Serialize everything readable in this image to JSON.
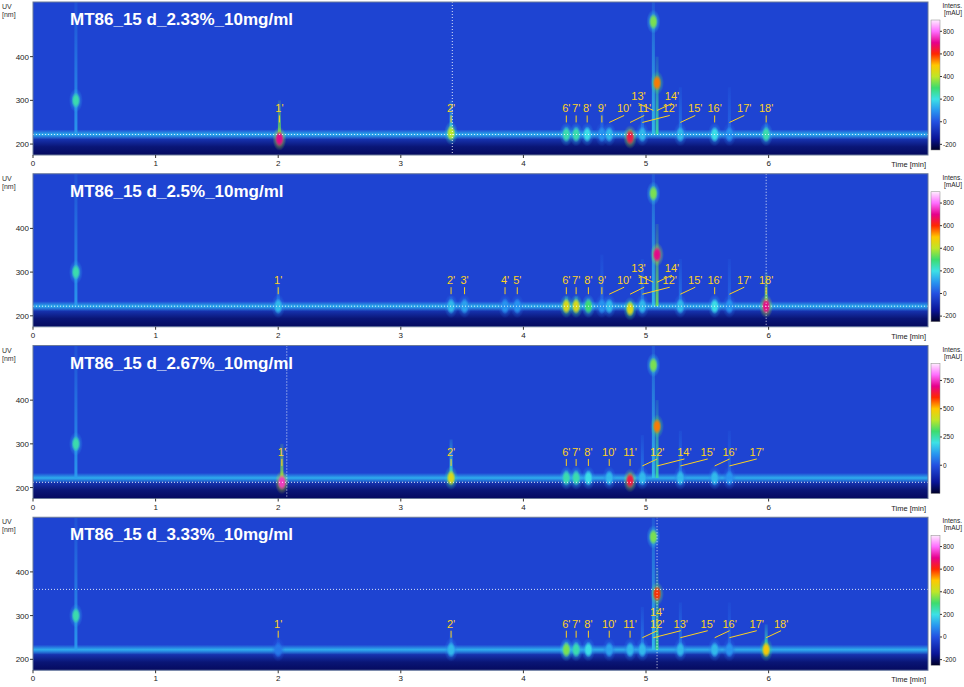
{
  "chart_data": [
    {
      "type": "heatmap",
      "title": "MT86_15 d_2.33%_10mg/ml",
      "x_label": "Time [min]",
      "y_label": "UV [nm]",
      "xlim": [
        0,
        7.3
      ],
      "xticks": [
        0,
        1,
        2,
        3,
        4,
        5,
        6
      ],
      "ylim": [
        175,
        525
      ],
      "yticks": [
        200,
        300,
        400
      ],
      "grid": false,
      "background_value": -30,
      "baseline": {
        "y": 222,
        "value": 130,
        "floor_value": -200
      },
      "cursor": {
        "x": 3.42,
        "y": 222
      },
      "colorbar": {
        "label": "Intens. [mAU]",
        "range": [
          -250,
          900
        ],
        "ticks": [
          -200,
          0,
          200,
          400,
          600,
          800
        ]
      },
      "peaks": [
        {
          "label": null,
          "x": 0.35,
          "y": 300,
          "value": 250,
          "y_top": 525
        },
        {
          "label": "1'",
          "x": 2.01,
          "y": 212,
          "value": 700,
          "y_top": 300
        },
        {
          "label": "2'",
          "x": 3.41,
          "y": 225,
          "value": 400,
          "y_top": 300
        },
        {
          "label": "6'",
          "x": 4.35,
          "y": 222,
          "value": 250,
          "y_top": 240
        },
        {
          "label": "7'",
          "x": 4.43,
          "y": 222,
          "value": 250,
          "y_top": 240
        },
        {
          "label": "8'",
          "x": 4.52,
          "y": 222,
          "value": 200,
          "y_top": 240
        },
        {
          "label": "9'",
          "x": 4.64,
          "y": 222,
          "value": 100,
          "y_top": 300
        },
        {
          "label": "10'",
          "x": 4.7,
          "y": 222,
          "value": 150,
          "y_top": 235
        },
        {
          "label": "11'",
          "x": 4.87,
          "y": 216,
          "value": 650,
          "y_top": 235
        },
        {
          "label": "12'",
          "x": 4.97,
          "y": 222,
          "value": 150,
          "y_top": 300
        },
        {
          "label": "13'",
          "x": 5.06,
          "y": 480,
          "value": 350,
          "y_top": 525
        },
        {
          "label": "14'",
          "x": 5.09,
          "y": 340,
          "value": 550,
          "y_top": 400
        },
        {
          "label": "15'",
          "x": 5.28,
          "y": 222,
          "value": 150,
          "y_top": 330
        },
        {
          "label": "16'",
          "x": 5.56,
          "y": 222,
          "value": 200,
          "y_top": 235
        },
        {
          "label": "17'",
          "x": 5.68,
          "y": 222,
          "value": 100,
          "y_top": 330
        },
        {
          "label": "18'",
          "x": 5.98,
          "y": 222,
          "value": 250,
          "y_top": 250
        }
      ]
    },
    {
      "type": "heatmap",
      "title": "MT86_15 d_2.5%_10mg/ml",
      "x_label": "Time [min]",
      "y_label": "UV [nm]",
      "xlim": [
        0,
        7.3
      ],
      "xticks": [
        0,
        1,
        2,
        3,
        4,
        5,
        6
      ],
      "ylim": [
        175,
        525
      ],
      "yticks": [
        200,
        300,
        400
      ],
      "grid": false,
      "background_value": -30,
      "baseline": {
        "y": 222,
        "value": 130,
        "floor_value": -200
      },
      "cursor": {
        "x": 5.98,
        "y": 222
      },
      "colorbar": {
        "label": "Intens. [mAU]",
        "range": [
          -250,
          900
        ],
        "ticks": [
          -200,
          0,
          200,
          400,
          600,
          800
        ]
      },
      "peaks": [
        {
          "label": null,
          "x": 0.35,
          "y": 300,
          "value": 250,
          "y_top": 525
        },
        {
          "label": "1'",
          "x": 2.0,
          "y": 222,
          "value": 150,
          "y_top": 280
        },
        {
          "label": "2'",
          "x": 3.41,
          "y": 222,
          "value": 150,
          "y_top": 245
        },
        {
          "label": "3'",
          "x": 3.52,
          "y": 222,
          "value": 120,
          "y_top": 240
        },
        {
          "label": "4'",
          "x": 3.85,
          "y": 222,
          "value": 100,
          "y_top": 240
        },
        {
          "label": "5'",
          "x": 3.95,
          "y": 222,
          "value": 100,
          "y_top": 240
        },
        {
          "label": "6'",
          "x": 4.35,
          "y": 222,
          "value": 450,
          "y_top": 245
        },
        {
          "label": "7'",
          "x": 4.43,
          "y": 222,
          "value": 450,
          "y_top": 245
        },
        {
          "label": "8'",
          "x": 4.53,
          "y": 222,
          "value": 300,
          "y_top": 240
        },
        {
          "label": "9'",
          "x": 4.64,
          "y": 222,
          "value": 100,
          "y_top": 340
        },
        {
          "label": "10'",
          "x": 4.7,
          "y": 222,
          "value": 150,
          "y_top": 235
        },
        {
          "label": "11'",
          "x": 4.87,
          "y": 216,
          "value": 450,
          "y_top": 235
        },
        {
          "label": "12'",
          "x": 4.97,
          "y": 222,
          "value": 150,
          "y_top": 330
        },
        {
          "label": "13'",
          "x": 5.06,
          "y": 480,
          "value": 350,
          "y_top": 525
        },
        {
          "label": "14'",
          "x": 5.09,
          "y": 340,
          "value": 700,
          "y_top": 410
        },
        {
          "label": "15'",
          "x": 5.28,
          "y": 222,
          "value": 150,
          "y_top": 330
        },
        {
          "label": "16'",
          "x": 5.56,
          "y": 222,
          "value": 200,
          "y_top": 235
        },
        {
          "label": "17'",
          "x": 5.68,
          "y": 222,
          "value": 100,
          "y_top": 330
        },
        {
          "label": "18'",
          "x": 5.98,
          "y": 222,
          "value": 700,
          "y_top": 300
        }
      ]
    },
    {
      "type": "heatmap",
      "title": "MT86_15 d_2.67%_10mg/ml",
      "x_label": "Time [min]",
      "y_label": "UV [nm]",
      "xlim": [
        0,
        7.3
      ],
      "xticks": [
        0,
        1,
        2,
        3,
        4,
        5,
        6
      ],
      "ylim": [
        175,
        525
      ],
      "yticks": [
        200,
        300,
        400
      ],
      "grid": false,
      "background_value": -30,
      "baseline": {
        "y": 222,
        "value": 130,
        "floor_value": -200
      },
      "cursor": {
        "x": 2.07,
        "y": 212
      },
      "colorbar": {
        "label": "Intens. [mAU]",
        "range": [
          -250,
          900
        ],
        "ticks": [
          0,
          250,
          500,
          750
        ]
      },
      "peaks": [
        {
          "label": null,
          "x": 0.35,
          "y": 300,
          "value": 250,
          "y_top": 525
        },
        {
          "label": "1'",
          "x": 2.03,
          "y": 212,
          "value": 750,
          "y_top": 300
        },
        {
          "label": "2'",
          "x": 3.41,
          "y": 222,
          "value": 450,
          "y_top": 310
        },
        {
          "label": "6'",
          "x": 4.35,
          "y": 222,
          "value": 250,
          "y_top": 240
        },
        {
          "label": "7'",
          "x": 4.43,
          "y": 222,
          "value": 250,
          "y_top": 240
        },
        {
          "label": "8'",
          "x": 4.53,
          "y": 222,
          "value": 200,
          "y_top": 240
        },
        {
          "label": "10'",
          "x": 4.7,
          "y": 222,
          "value": 150,
          "y_top": 235
        },
        {
          "label": "11'",
          "x": 4.87,
          "y": 216,
          "value": 650,
          "y_top": 235
        },
        {
          "label": "12'",
          "x": 4.97,
          "y": 222,
          "value": 150,
          "y_top": 320
        },
        {
          "label": null,
          "x": 5.06,
          "y": 480,
          "value": 350,
          "y_top": 525
        },
        {
          "label": "14'",
          "x": 5.09,
          "y": 340,
          "value": 550,
          "y_top": 400
        },
        {
          "label": "15'",
          "x": 5.28,
          "y": 222,
          "value": 150,
          "y_top": 330
        },
        {
          "label": "16'",
          "x": 5.56,
          "y": 222,
          "value": 150,
          "y_top": 235
        },
        {
          "label": "17'",
          "x": 5.68,
          "y": 222,
          "value": 100,
          "y_top": 330
        }
      ]
    },
    {
      "type": "heatmap",
      "title": "MT86_15 d_3.33%_10mg/ml",
      "x_label": "Time [min]",
      "y_label": "UV [nm]",
      "xlim": [
        0,
        7.3
      ],
      "xticks": [
        0,
        1,
        2,
        3,
        4,
        5,
        6
      ],
      "ylim": [
        175,
        525
      ],
      "yticks": [
        200,
        300,
        400
      ],
      "grid": false,
      "background_value": -30,
      "baseline": {
        "y": 222,
        "value": 130,
        "floor_value": -200
      },
      "cursor": {
        "x": 5.09,
        "y": 360
      },
      "colorbar": {
        "label": "Intens. [mAU]",
        "range": [
          -250,
          900
        ],
        "ticks": [
          -200,
          0,
          200,
          400,
          600,
          800
        ]
      },
      "peaks": [
        {
          "label": null,
          "x": 0.35,
          "y": 300,
          "value": 250,
          "y_top": 525
        },
        {
          "label": "1'",
          "x": 2.0,
          "y": 222,
          "value": 60,
          "y_top": 260
        },
        {
          "label": "2'",
          "x": 3.41,
          "y": 222,
          "value": 150,
          "y_top": 265
        },
        {
          "label": "6'",
          "x": 4.35,
          "y": 222,
          "value": 350,
          "y_top": 240
        },
        {
          "label": "7'",
          "x": 4.43,
          "y": 222,
          "value": 250,
          "y_top": 240
        },
        {
          "label": "8'",
          "x": 4.53,
          "y": 222,
          "value": 200,
          "y_top": 240
        },
        {
          "label": "10'",
          "x": 4.7,
          "y": 222,
          "value": 120,
          "y_top": 235
        },
        {
          "label": "11'",
          "x": 4.87,
          "y": 222,
          "value": 150,
          "y_top": 235
        },
        {
          "label": "12'",
          "x": 4.97,
          "y": 222,
          "value": 150,
          "y_top": 320
        },
        {
          "label": "13'",
          "x": 5.06,
          "y": 480,
          "value": 350,
          "y_top": 525
        },
        {
          "label": "14'",
          "x": 5.09,
          "y": 350,
          "value": 600,
          "y_top": 410
        },
        {
          "label": "15'",
          "x": 5.28,
          "y": 222,
          "value": 150,
          "y_top": 330
        },
        {
          "label": "16'",
          "x": 5.56,
          "y": 222,
          "value": 150,
          "y_top": 235
        },
        {
          "label": "17'",
          "x": 5.68,
          "y": 222,
          "value": 100,
          "y_top": 330
        },
        {
          "label": "18'",
          "x": 5.98,
          "y": 222,
          "value": 500,
          "y_top": 280
        }
      ]
    }
  ]
}
